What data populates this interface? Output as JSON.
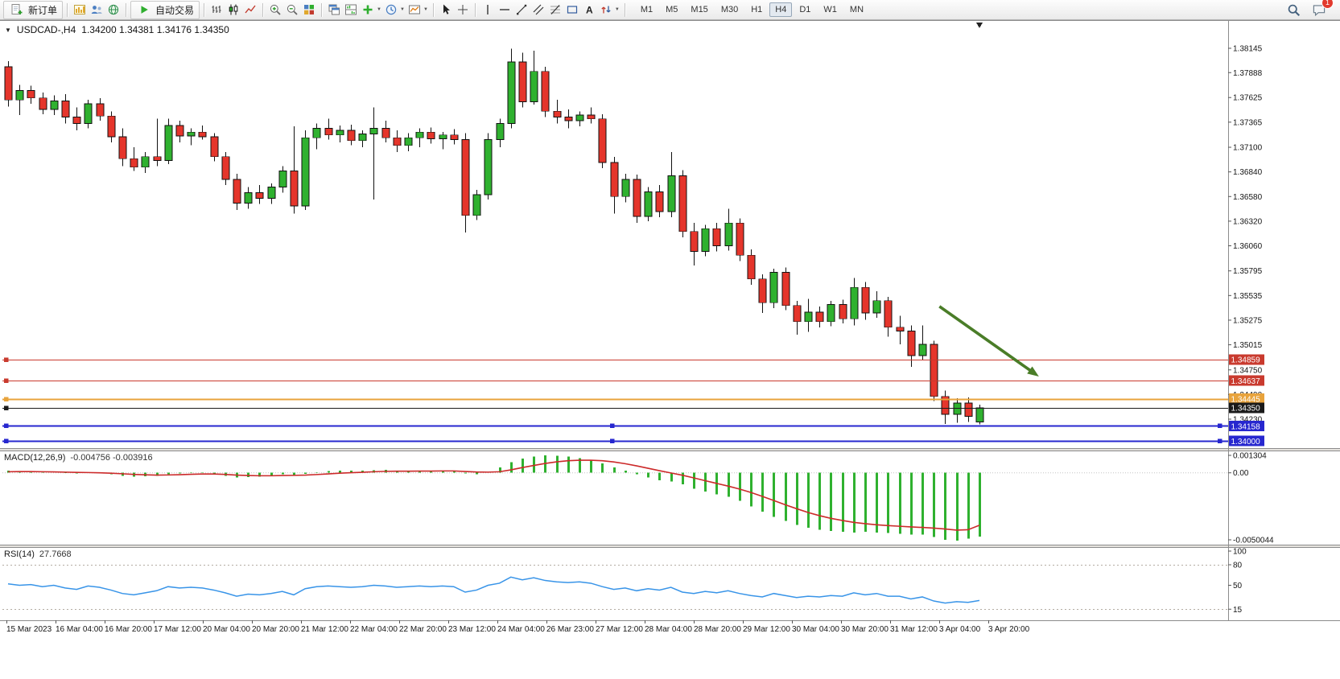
{
  "toolbar": {
    "new_order_label": "新订单",
    "autotrading_label": "自动交易",
    "timeframes": [
      "M1",
      "M5",
      "M15",
      "M30",
      "H1",
      "H4",
      "D1",
      "W1",
      "MN"
    ],
    "active_timeframe": "H4",
    "chat_badge": "1",
    "icon_names": [
      "new-order",
      "new-chart",
      "profiles",
      "refresh-data",
      "autotrading",
      "bar-chart",
      "candlestick-chart",
      "line-chart",
      "zoom-in",
      "zoom-out",
      "tile-windows",
      "cascade-windows",
      "tile-horizontal",
      "add-indicator",
      "periods",
      "templates",
      "cursor",
      "crosshair",
      "vertical-line",
      "horizontal-line",
      "trendline",
      "equidistant-channel",
      "fibonacci",
      "shapes",
      "text",
      "arrows",
      "search",
      "chat"
    ]
  },
  "chart_data": {
    "type": "candlestick",
    "symbol_period": "USDCAD-,H4",
    "ohlc_text": "1.34200 1.34381 1.34176 1.34350",
    "ohlc_current": {
      "open": "1.34200",
      "high": "1.34381",
      "low": "1.34176",
      "close": "1.34350"
    },
    "up_color": "#2fb12f",
    "down_color": "#e5352b",
    "y_axis_range": [
      1.339,
      1.3827
    ],
    "y_ticks": [
      "1.38145",
      "1.37888",
      "1.37625",
      "1.37365",
      "1.37100",
      "1.36840",
      "1.36580",
      "1.36320",
      "1.36060",
      "1.35795",
      "1.35535",
      "1.35275",
      "1.35015",
      "1.34750",
      "1.34490",
      "1.34230"
    ],
    "x_labels": [
      "15 Mar 2023",
      "16 Mar 04:00",
      "16 Mar 20:00",
      "17 Mar 12:00",
      "20 Mar 04:00",
      "20 Mar 20:00",
      "21 Mar 12:00",
      "22 Mar 04:00",
      "22 Mar 20:00",
      "23 Mar 12:00",
      "24 Mar 04:00",
      "26 Mar 23:00",
      "27 Mar 12:00",
      "28 Mar 04:00",
      "28 Mar 20:00",
      "29 Mar 12:00",
      "30 Mar 04:00",
      "30 Mar 20:00",
      "31 Mar 12:00",
      "3 Apr 04:00",
      "3 Apr 20:00"
    ],
    "price_lines": [
      {
        "label": "1.34859",
        "level": 1.34859,
        "color": "#c93a2e",
        "width": 1.2,
        "handles": "left"
      },
      {
        "label": "1.34637",
        "level": 1.34637,
        "color": "#c93a2e",
        "width": 1.2,
        "handles": "left"
      },
      {
        "label": "1.34445",
        "level": 1.34445,
        "color": "#e8a33c",
        "width": 1.8,
        "handles": "left"
      },
      {
        "label": "1.34350",
        "level": 1.3435,
        "color": "#1a1a1a",
        "width": 1.2,
        "handles": "left"
      },
      {
        "label": "1.34158",
        "level": 1.34158,
        "color": "#2727cf",
        "width": 1.8,
        "handles": "all"
      },
      {
        "label": "1.34000",
        "level": 1.34,
        "color": "#2727cf",
        "width": 1.8,
        "handles": "all"
      }
    ],
    "annotations": {
      "arrow": {
        "from_index": 81.5,
        "from_price": 1.3542,
        "to_index": 90.2,
        "to_price": 1.3468,
        "color": "#4a7d28"
      }
    },
    "candles": [
      [
        1.3795,
        1.3801,
        1.3753,
        1.376
      ],
      [
        1.376,
        1.3776,
        1.3744,
        1.377
      ],
      [
        1.377,
        1.3775,
        1.3756,
        1.3762
      ],
      [
        1.3762,
        1.3768,
        1.3745,
        1.375
      ],
      [
        1.375,
        1.3765,
        1.3744,
        1.3759
      ],
      [
        1.3759,
        1.3766,
        1.3735,
        1.3742
      ],
      [
        1.3742,
        1.3752,
        1.3728,
        1.3735
      ],
      [
        1.3735,
        1.376,
        1.373,
        1.3756
      ],
      [
        1.3756,
        1.3762,
        1.3738,
        1.3743
      ],
      [
        1.3743,
        1.3748,
        1.3715,
        1.3721
      ],
      [
        1.3721,
        1.373,
        1.369,
        1.3698
      ],
      [
        1.3698,
        1.371,
        1.3685,
        1.3689
      ],
      [
        1.3689,
        1.3705,
        1.3683,
        1.37
      ],
      [
        1.37,
        1.374,
        1.369,
        1.3696
      ],
      [
        1.3696,
        1.374,
        1.3692,
        1.3733
      ],
      [
        1.3733,
        1.3738,
        1.3715,
        1.3722
      ],
      [
        1.3722,
        1.373,
        1.3712,
        1.3726
      ],
      [
        1.3726,
        1.3733,
        1.3718,
        1.3721
      ],
      [
        1.3721,
        1.3725,
        1.3695,
        1.37
      ],
      [
        1.37,
        1.3705,
        1.367,
        1.3676
      ],
      [
        1.3676,
        1.3682,
        1.3644,
        1.3651
      ],
      [
        1.3651,
        1.3668,
        1.3645,
        1.3662
      ],
      [
        1.3662,
        1.367,
        1.365,
        1.3656
      ],
      [
        1.3656,
        1.3672,
        1.365,
        1.3668
      ],
      [
        1.3668,
        1.369,
        1.3662,
        1.3685
      ],
      [
        1.3685,
        1.3732,
        1.364,
        1.3648
      ],
      [
        1.3648,
        1.3728,
        1.3644,
        1.372
      ],
      [
        1.372,
        1.3735,
        1.3708,
        1.373
      ],
      [
        1.373,
        1.374,
        1.3718,
        1.3723
      ],
      [
        1.3723,
        1.3733,
        1.3715,
        1.3728
      ],
      [
        1.3728,
        1.3734,
        1.3712,
        1.3717
      ],
      [
        1.3717,
        1.3728,
        1.371,
        1.3724
      ],
      [
        1.3724,
        1.3752,
        1.3655,
        1.373
      ],
      [
        1.373,
        1.3738,
        1.3715,
        1.372
      ],
      [
        1.372,
        1.3728,
        1.3705,
        1.3712
      ],
      [
        1.3712,
        1.3725,
        1.3706,
        1.372
      ],
      [
        1.372,
        1.373,
        1.371,
        1.3726
      ],
      [
        1.3726,
        1.3731,
        1.3714,
        1.3719
      ],
      [
        1.3719,
        1.3726,
        1.3708,
        1.3723
      ],
      [
        1.3723,
        1.3729,
        1.3713,
        1.3718
      ],
      [
        1.3718,
        1.3725,
        1.362,
        1.3638
      ],
      [
        1.3638,
        1.3665,
        1.3633,
        1.366
      ],
      [
        1.366,
        1.3725,
        1.3655,
        1.3718
      ],
      [
        1.3718,
        1.374,
        1.371,
        1.3735
      ],
      [
        1.3735,
        1.3814,
        1.373,
        1.38
      ],
      [
        1.38,
        1.381,
        1.3752,
        1.3758
      ],
      [
        1.3758,
        1.3812,
        1.3755,
        1.379
      ],
      [
        1.379,
        1.3795,
        1.3742,
        1.3748
      ],
      [
        1.3748,
        1.376,
        1.3735,
        1.3742
      ],
      [
        1.3742,
        1.375,
        1.373,
        1.3738
      ],
      [
        1.3738,
        1.3748,
        1.3732,
        1.3744
      ],
      [
        1.3744,
        1.3752,
        1.3735,
        1.374
      ],
      [
        1.374,
        1.3745,
        1.3688,
        1.3694
      ],
      [
        1.3694,
        1.37,
        1.364,
        1.3658
      ],
      [
        1.3658,
        1.3682,
        1.3652,
        1.3676
      ],
      [
        1.3676,
        1.3681,
        1.363,
        1.3637
      ],
      [
        1.3637,
        1.3668,
        1.3632,
        1.3663
      ],
      [
        1.3663,
        1.367,
        1.3636,
        1.3642
      ],
      [
        1.3642,
        1.3705,
        1.3636,
        1.368
      ],
      [
        1.368,
        1.3686,
        1.3615,
        1.3621
      ],
      [
        1.3621,
        1.363,
        1.3585,
        1.36
      ],
      [
        1.36,
        1.3628,
        1.3595,
        1.3624
      ],
      [
        1.3624,
        1.363,
        1.36,
        1.3606
      ],
      [
        1.3606,
        1.3645,
        1.3601,
        1.363
      ],
      [
        1.363,
        1.3635,
        1.359,
        1.3596
      ],
      [
        1.3596,
        1.3602,
        1.3565,
        1.3571
      ],
      [
        1.3571,
        1.3576,
        1.3535,
        1.3546
      ],
      [
        1.3546,
        1.3582,
        1.354,
        1.3578
      ],
      [
        1.3578,
        1.3583,
        1.3538,
        1.3543
      ],
      [
        1.3543,
        1.3548,
        1.3512,
        1.3526
      ],
      [
        1.3526,
        1.355,
        1.3515,
        1.3536
      ],
      [
        1.3536,
        1.3542,
        1.352,
        1.3526
      ],
      [
        1.3526,
        1.3548,
        1.3521,
        1.3544
      ],
      [
        1.3544,
        1.3549,
        1.3524,
        1.3529
      ],
      [
        1.3529,
        1.3572,
        1.3522,
        1.3562
      ],
      [
        1.3562,
        1.3568,
        1.3528,
        1.3535
      ],
      [
        1.3535,
        1.3558,
        1.353,
        1.3548
      ],
      [
        1.3548,
        1.3552,
        1.351,
        1.352
      ],
      [
        1.352,
        1.3532,
        1.3502,
        1.3516
      ],
      [
        1.3516,
        1.3522,
        1.3478,
        1.349
      ],
      [
        1.349,
        1.3522,
        1.3485,
        1.3502
      ],
      [
        1.3502,
        1.3506,
        1.3442,
        1.3447
      ],
      [
        1.3447,
        1.3453,
        1.3418,
        1.3428
      ],
      [
        1.3428,
        1.3445,
        1.3419,
        1.344
      ],
      [
        1.344,
        1.3446,
        1.342,
        1.3426
      ],
      [
        1.342,
        1.34381,
        1.34176,
        1.3435
      ]
    ],
    "indicators": [
      {
        "name": "MACD",
        "label": "MACD(12,26,9)",
        "values_text": "-0.004756 -0.003916",
        "axis_labels": [
          "0.001304",
          "0.00",
          "-0.0050044"
        ],
        "axis_values": [
          0.001304,
          0,
          -0.0050044
        ],
        "hist_color": "#2fb12f",
        "signal_color": "#cc2a2a",
        "histogram": [
          0.00015,
          0.00012,
          8e-05,
          5e-05,
          2e-05,
          -2e-05,
          -6e-05,
          -3e-05,
          -5e-05,
          -0.00012,
          -0.00022,
          -0.00028,
          -0.00026,
          -0.00022,
          -0.00012,
          -6e-05,
          -2e-05,
          -3e-05,
          -0.0001,
          -0.00022,
          -0.00034,
          -0.00032,
          -0.00028,
          -0.00022,
          -0.00012,
          -0.00018,
          -8e-05,
          4e-05,
          0.00012,
          0.00016,
          0.00016,
          0.00017,
          0.0002,
          0.00021,
          0.00016,
          0.00014,
          0.00015,
          0.00015,
          0.00015,
          0.00014,
          -5e-05,
          -0.00012,
          2e-05,
          0.0004,
          0.0008,
          0.00105,
          0.0012,
          0.0013,
          0.00128,
          0.0012,
          0.0011,
          0.00095,
          0.0007,
          0.0004,
          0.00015,
          -0.0001,
          -0.00035,
          -0.00055,
          -0.00065,
          -0.00085,
          -0.0012,
          -0.0014,
          -0.0016,
          -0.0018,
          -0.0021,
          -0.0025,
          -0.0029,
          -0.0033,
          -0.0036,
          -0.0039,
          -0.0041,
          -0.00425,
          -0.00435,
          -0.0044,
          -0.00445,
          -0.0044,
          -0.00445,
          -0.0045,
          -0.00455,
          -0.0046,
          -0.0046,
          -0.0048,
          -0.005,
          -0.00505,
          -0.0049,
          -0.004756
        ],
        "signal": [
          8e-05,
          9e-05,
          9e-05,
          8e-05,
          7e-05,
          5e-05,
          3e-05,
          2e-05,
          0,
          -3e-05,
          -7e-05,
          -0.00012,
          -0.00015,
          -0.00017,
          -0.00016,
          -0.00014,
          -0.00011,
          -9e-05,
          -9e-05,
          -0.00012,
          -0.00017,
          -0.0002,
          -0.00022,
          -0.00022,
          -0.0002,
          -0.00019,
          -0.00017,
          -0.00013,
          -8e-05,
          -3e-05,
          1e-05,
          4e-05,
          8e-05,
          0.00011,
          0.00012,
          0.00012,
          0.00013,
          0.00013,
          0.00014,
          0.00014,
          0.0001,
          6e-05,
          5e-05,
          8e-05,
          0.00022,
          0.00039,
          0.00055,
          0.0007,
          0.00082,
          0.0009,
          0.00094,
          0.00094,
          0.0009,
          0.00081,
          0.00068,
          0.00052,
          0.00034,
          0.00016,
          -1e-05,
          -0.00018,
          -0.00038,
          -0.00059,
          -0.00079,
          -0.00099,
          -0.00121,
          -0.00147,
          -0.00176,
          -0.00207,
          -0.00238,
          -0.00268,
          -0.00296,
          -0.0032,
          -0.0034,
          -0.00356,
          -0.0037,
          -0.0038,
          -0.00388,
          -0.00394,
          -0.00399,
          -0.00404,
          -0.00408,
          -0.00413,
          -0.0042,
          -0.00428,
          -0.00425,
          -0.003916
        ]
      },
      {
        "name": "RSI",
        "label": "RSI(14)",
        "value_text": "27.7668",
        "axis_labels": [
          "100",
          "80",
          "50",
          "15"
        ],
        "axis_values": [
          100,
          80,
          50,
          15
        ],
        "levels": [
          80,
          15
        ],
        "color": "#3894e8",
        "values": [
          52,
          50,
          51,
          48,
          50,
          46,
          44,
          49,
          47,
          43,
          38,
          36,
          39,
          42,
          48,
          46,
          47,
          46,
          43,
          39,
          34,
          37,
          36,
          38,
          41,
          36,
          45,
          48,
          49,
          48,
          47,
          48,
          50,
          49,
          47,
          48,
          49,
          48,
          49,
          48,
          40,
          43,
          50,
          53,
          62,
          58,
          61,
          57,
          55,
          54,
          55,
          53,
          48,
          44,
          46,
          42,
          45,
          43,
          47,
          40,
          38,
          41,
          39,
          42,
          38,
          35,
          33,
          38,
          35,
          32,
          34,
          33,
          35,
          34,
          39,
          36,
          38,
          34,
          34,
          30,
          33,
          27,
          24,
          26,
          25,
          27.7668
        ]
      }
    ]
  }
}
